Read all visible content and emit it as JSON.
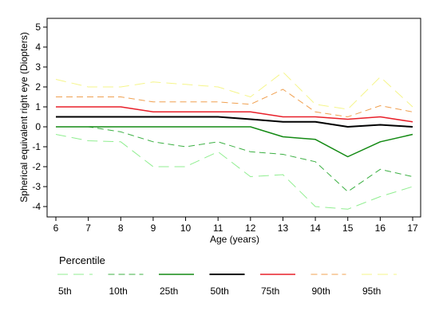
{
  "chart_data": {
    "type": "line",
    "title": "",
    "xlabel": "Age (years)",
    "ylabel": "Spherical equivalent right eye (Diopters)",
    "x": [
      6,
      7,
      8,
      9,
      10,
      11,
      12,
      13,
      14,
      15,
      16,
      17
    ],
    "xlim": [
      6,
      17
    ],
    "ylim": [
      -4.5,
      5.3
    ],
    "x_ticks": [
      6,
      7,
      8,
      9,
      10,
      11,
      12,
      13,
      14,
      15,
      16,
      17
    ],
    "y_ticks": [
      -4,
      -3,
      -2,
      -1,
      0,
      1,
      2,
      3,
      4,
      5
    ],
    "grid": false,
    "legend_title": "Percentile",
    "legend_position": "bottom",
    "series": [
      {
        "name": "5th",
        "color": "#90ee90",
        "dash": "long-dash",
        "width": 1,
        "values": [
          -0.38,
          -0.7,
          -0.75,
          -2.0,
          -2.0,
          -1.25,
          -2.5,
          -2.4,
          -4.0,
          -4.13,
          -3.5,
          -3.0
        ]
      },
      {
        "name": "10th",
        "color": "#3cb043",
        "dash": "medium-dash",
        "width": 1,
        "values": [
          0.0,
          0.0,
          -0.25,
          -0.75,
          -1.0,
          -0.75,
          -1.25,
          -1.38,
          -1.75,
          -3.25,
          -2.13,
          -2.5
        ]
      },
      {
        "name": "25th",
        "color": "#138a13",
        "dash": "solid",
        "width": 1.5,
        "values": [
          0.0,
          0.0,
          0.0,
          0.0,
          0.0,
          0.0,
          0.0,
          -0.5,
          -0.63,
          -1.5,
          -0.75,
          -0.38
        ]
      },
      {
        "name": "50th",
        "color": "#000000",
        "dash": "solid",
        "width": 2,
        "values": [
          0.5,
          0.5,
          0.5,
          0.5,
          0.5,
          0.5,
          0.38,
          0.25,
          0.25,
          0.0,
          0.1,
          0.0
        ]
      },
      {
        "name": "75th",
        "color": "#e8202a",
        "dash": "solid",
        "width": 1.5,
        "values": [
          1.0,
          1.0,
          1.0,
          0.75,
          0.75,
          0.75,
          0.75,
          0.5,
          0.5,
          0.38,
          0.5,
          0.25
        ]
      },
      {
        "name": "90th",
        "color": "#f0a050",
        "dash": "medium-dash",
        "width": 1,
        "values": [
          1.5,
          1.5,
          1.5,
          1.25,
          1.25,
          1.25,
          1.13,
          1.88,
          0.75,
          0.5,
          1.06,
          0.75
        ]
      },
      {
        "name": "95th",
        "color": "#f5f58a",
        "dash": "long-dash",
        "width": 1,
        "values": [
          2.38,
          2.0,
          2.0,
          2.25,
          2.13,
          2.0,
          1.5,
          2.75,
          1.13,
          0.88,
          2.5,
          1.0
        ]
      }
    ]
  }
}
